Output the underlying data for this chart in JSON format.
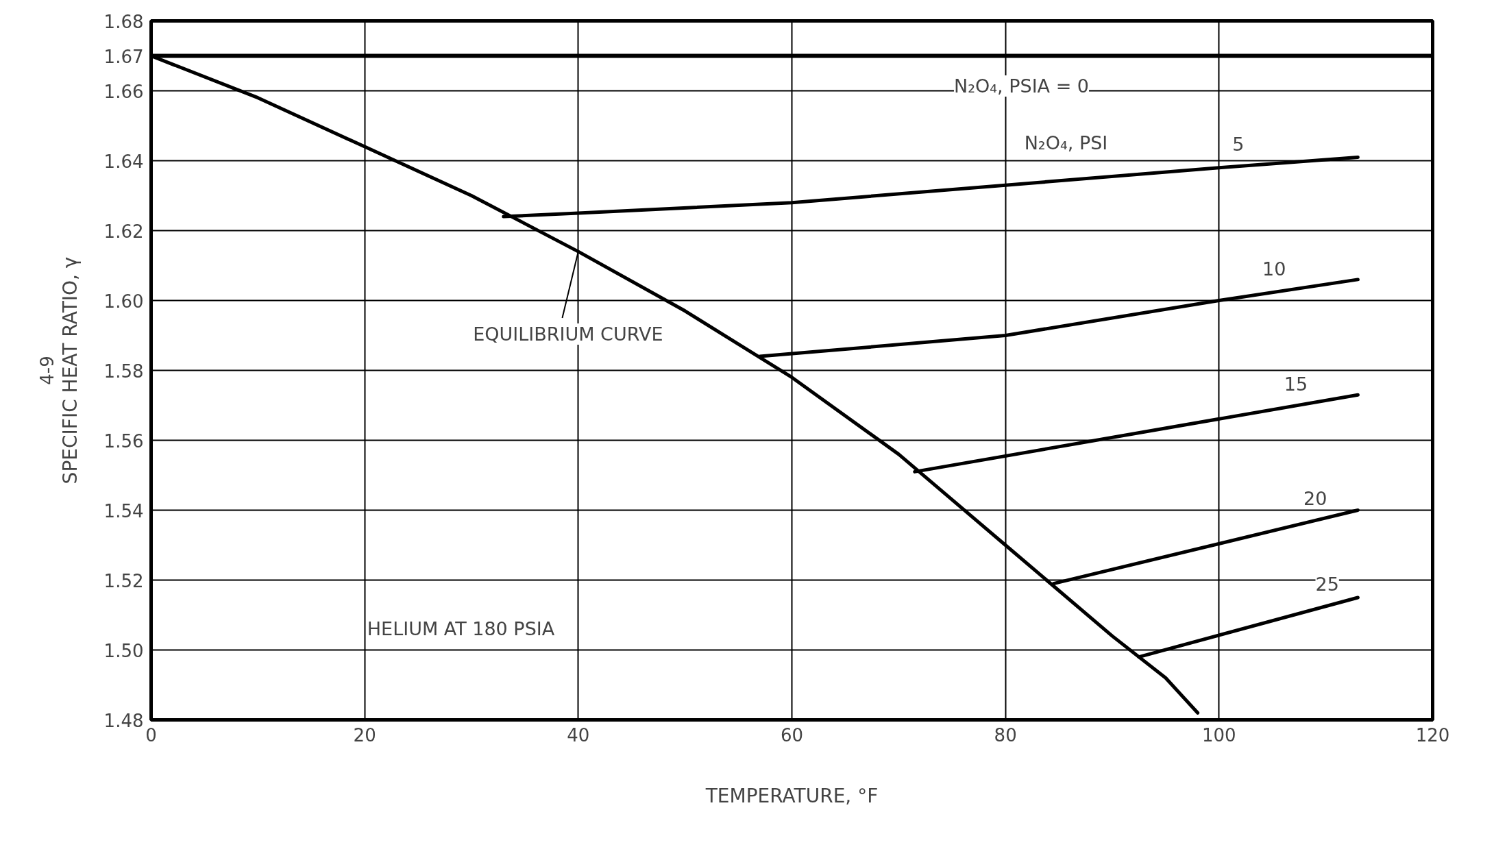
{
  "chart_data": {
    "type": "line",
    "xlabel": "TEMPERATURE, °F",
    "ylabel": "SPECIFIC HEAT RATIO, γ",
    "xlim": [
      0,
      120
    ],
    "ylim": [
      1.48,
      1.68
    ],
    "xticks": [
      0,
      20,
      40,
      60,
      80,
      100,
      120
    ],
    "yticks": [
      1.48,
      {
        "value": 1.5,
        "label": "1.50"
      },
      1.52,
      1.54,
      1.56,
      1.58,
      {
        "value": 1.6,
        "label": "1.60"
      },
      1.62,
      1.64,
      1.66,
      1.67,
      1.68
    ],
    "grid": true,
    "marker": "none",
    "line_style": "solid",
    "series": [
      {
        "name": "EQUILIBRIUM CURVE",
        "color": "#000000",
        "x": [
          0,
          10,
          20,
          30,
          40,
          50,
          60,
          70,
          80,
          90,
          95,
          98
        ],
        "values": [
          1.67,
          1.658,
          1.644,
          1.63,
          1.614,
          1.597,
          1.578,
          1.556,
          1.53,
          1.504,
          1.492,
          1.482
        ]
      },
      {
        "name": "5",
        "color": "#000000",
        "x": [
          33,
          40,
          60,
          80,
          100,
          113
        ],
        "values": [
          1.624,
          1.625,
          1.628,
          1.633,
          1.638,
          1.641
        ]
      },
      {
        "name": "10",
        "color": "#000000",
        "x": [
          57,
          80,
          100,
          113
        ],
        "values": [
          1.584,
          1.59,
          1.6,
          1.606
        ]
      },
      {
        "name": "15",
        "color": "#000000",
        "x": [
          71.5,
          113
        ],
        "values": [
          1.551,
          1.573
        ]
      },
      {
        "name": "20",
        "color": "#000000",
        "x": [
          84.5,
          113
        ],
        "values": [
          1.519,
          1.54
        ]
      },
      {
        "name": "25",
        "color": "#000000",
        "x": [
          92.5,
          113
        ],
        "values": [
          1.498,
          1.515
        ]
      }
    ],
    "ref_lines": [
      {
        "axis": "y",
        "value": 1.67,
        "color": "#000000",
        "line_style": "solid"
      }
    ],
    "annotations": [
      "N₂O₄, PSI",
      "HELIUM AT 180 PSIA",
      "4-9",
      "N₂O₄, PSIA = 0"
    ]
  }
}
